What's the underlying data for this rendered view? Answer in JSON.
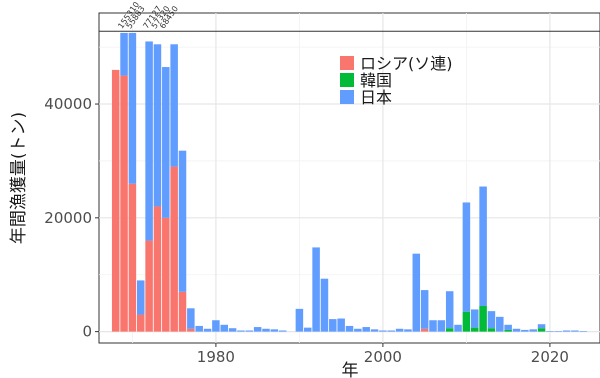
{
  "chart_data": {
    "type": "bar",
    "stacked": true,
    "xlabel": "年",
    "ylabel": "年間漁獲量(トン)",
    "xlim": [
      1966,
      2026
    ],
    "ylim": [
      -2000,
      56000
    ],
    "x_ticks": [
      1980,
      2000,
      2020
    ],
    "y_ticks": [
      0,
      20000,
      40000
    ],
    "grid": true,
    "legend_position": "top-right",
    "cap_line": 52800,
    "x": [
      1968,
      1969,
      1970,
      1971,
      1972,
      1973,
      1974,
      1975,
      1976,
      1977,
      1978,
      1979,
      1980,
      1981,
      1982,
      1983,
      1984,
      1985,
      1986,
      1987,
      1988,
      1989,
      1990,
      1991,
      1992,
      1993,
      1994,
      1995,
      1996,
      1997,
      1998,
      1999,
      2000,
      2001,
      2002,
      2003,
      2004,
      2005,
      2006,
      2007,
      2008,
      2009,
      2010,
      2011,
      2012,
      2013,
      2014,
      2015,
      2016,
      2017,
      2018,
      2019,
      2020,
      2021,
      2022,
      2023,
      2024
    ],
    "series": [
      {
        "name": "ロシア(ソ連)",
        "color": "#F8766D",
        "values": [
          46000,
          45000,
          26000,
          3000,
          16000,
          22000,
          20000,
          29000,
          7000,
          500,
          0,
          0,
          0,
          0,
          0,
          0,
          0,
          0,
          0,
          0,
          0,
          0,
          0,
          0,
          0,
          0,
          0,
          0,
          0,
          0,
          0,
          0,
          0,
          0,
          0,
          0,
          0,
          500,
          0,
          0,
          0,
          0,
          0,
          0,
          0,
          0,
          0,
          0,
          0,
          0,
          0,
          0,
          0,
          0,
          0,
          0,
          0
        ]
      },
      {
        "name": "韓国",
        "color": "#00BA38",
        "values": [
          0,
          0,
          0,
          0,
          0,
          0,
          0,
          0,
          0,
          0,
          0,
          0,
          0,
          0,
          0,
          0,
          0,
          0,
          0,
          0,
          0,
          0,
          0,
          0,
          0,
          0,
          0,
          0,
          0,
          0,
          0,
          0,
          0,
          0,
          0,
          0,
          0,
          0,
          0,
          0,
          600,
          0,
          3500,
          700,
          4500,
          600,
          0,
          300,
          0,
          0,
          0,
          600,
          0,
          0,
          0,
          0,
          0
        ]
      },
      {
        "name": "日本",
        "color": "#619CFF",
        "values": [
          0,
          7500,
          26500,
          6000,
          35000,
          28500,
          26500,
          21500,
          24800,
          3600,
          1000,
          500,
          2000,
          1200,
          600,
          200,
          200,
          800,
          500,
          400,
          200,
          0,
          4000,
          700,
          14800,
          9300,
          2200,
          2300,
          1000,
          500,
          800,
          400,
          200,
          200,
          500,
          400,
          13700,
          6800,
          2000,
          2000,
          6500,
          1200,
          19200,
          3200,
          21000,
          3000,
          2600,
          900,
          500,
          300,
          400,
          700,
          100,
          100,
          200,
          200,
          100
        ]
      }
    ],
    "cap_labels": [
      {
        "x": 1969,
        "text": "155310"
      },
      {
        "x": 1970,
        "text": "55883"
      },
      {
        "x": 1972,
        "text": "77127"
      },
      {
        "x": 1973,
        "text": "57320"
      },
      {
        "x": 1974,
        "text": "68450"
      }
    ]
  }
}
